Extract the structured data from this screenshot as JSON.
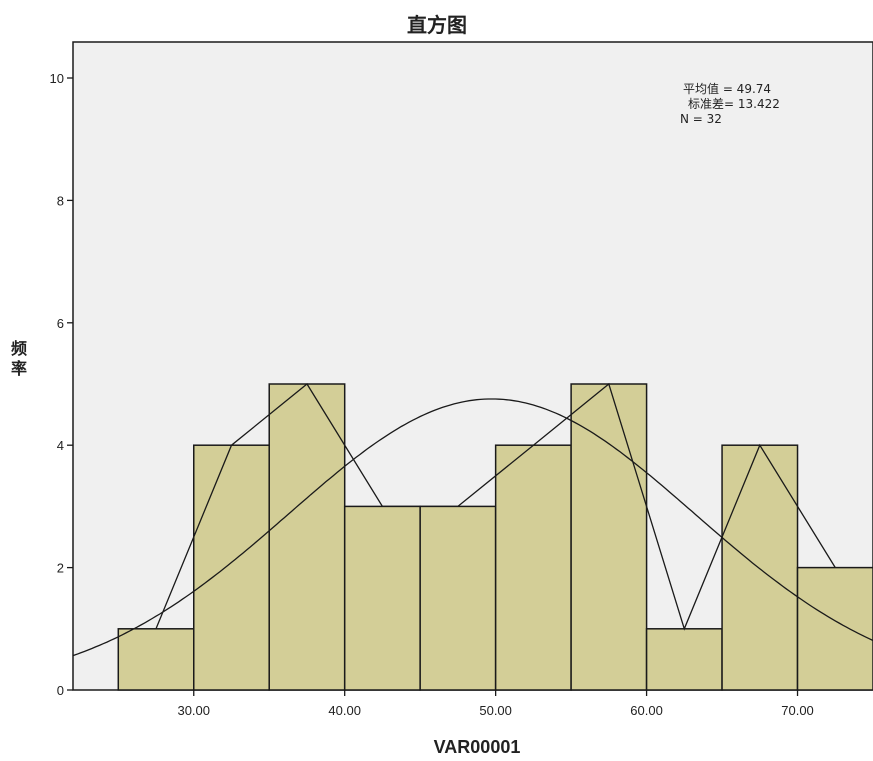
{
  "chart_data": {
    "type": "bar",
    "title": "直方图",
    "xlabel": "VAR00001",
    "ylabel": "频率",
    "bins": [
      {
        "start": 25,
        "end": 30,
        "count": 1
      },
      {
        "start": 30,
        "end": 35,
        "count": 4
      },
      {
        "start": 35,
        "end": 40,
        "count": 5
      },
      {
        "start": 40,
        "end": 45,
        "count": 3
      },
      {
        "start": 45,
        "end": 50,
        "count": 3
      },
      {
        "start": 50,
        "end": 55,
        "count": 4
      },
      {
        "start": 55,
        "end": 60,
        "count": 5
      },
      {
        "start": 60,
        "end": 65,
        "count": 1
      },
      {
        "start": 65,
        "end": 70,
        "count": 4
      },
      {
        "start": 70,
        "end": 75,
        "count": 2
      }
    ],
    "frequency_polygon": {
      "x": [
        27.5,
        32.5,
        37.5,
        42.5,
        47.5,
        52.5,
        57.5,
        62.5,
        67.5,
        72.5
      ],
      "y": [
        1,
        4,
        5,
        3,
        3,
        4,
        5,
        1,
        4,
        2
      ]
    },
    "normal_curve": {
      "mean": 49.74,
      "sd": 13.422,
      "n": 32,
      "bin_width": 5
    },
    "xlim": [
      22.0,
      75.0
    ],
    "ylim": [
      0,
      10
    ],
    "x_ticks": [
      "30.00",
      "40.00",
      "50.00",
      "60.00",
      "70.00"
    ],
    "y_ticks": [
      "0",
      "2",
      "4",
      "6",
      "8",
      "10"
    ],
    "stats_lines": [
      "平均值 = 49.74",
      "标准差= 13.422",
      "N = 32"
    ],
    "grid": false,
    "colors": {
      "plot_background": "#F0F0F0",
      "bar_fill": "#D3CE97",
      "bar_stroke": "#1A1A1A",
      "line": "#1A1A1A"
    }
  }
}
